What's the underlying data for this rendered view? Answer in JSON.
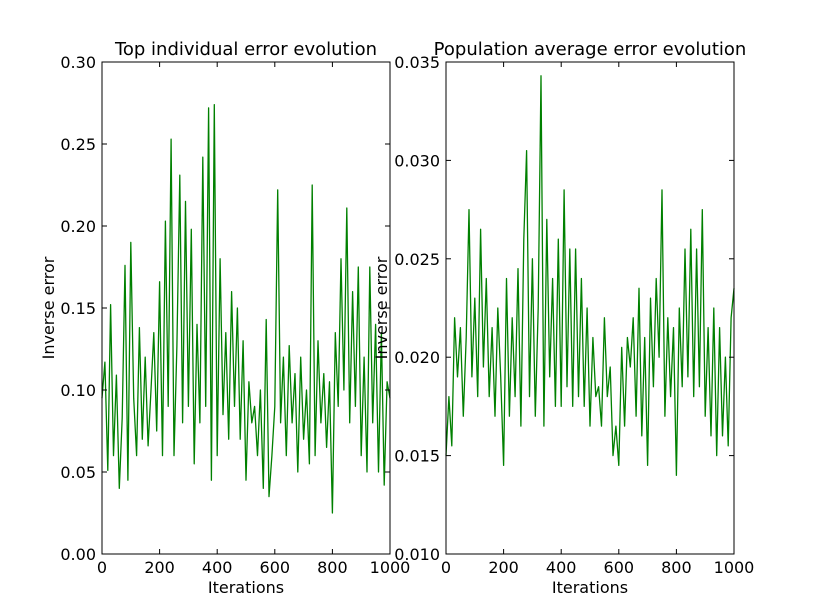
{
  "chart_data": [
    {
      "type": "line",
      "title": "Top individual error evolution",
      "xlabel": "Iterations",
      "ylabel": "Inverse error",
      "xlim": [
        0,
        1000
      ],
      "ylim": [
        0.0,
        0.3
      ],
      "xticks": [
        0,
        200,
        400,
        600,
        800,
        1000
      ],
      "xtick_labels": [
        "0",
        "200",
        "400",
        "600",
        "800",
        "1000"
      ],
      "yticks": [
        0.0,
        0.05,
        0.1,
        0.15,
        0.2,
        0.25,
        0.3
      ],
      "ytick_labels": [
        "0.00",
        "0.05",
        "0.10",
        "0.15",
        "0.20",
        "0.25",
        "0.30"
      ],
      "grid": false,
      "series": [
        {
          "color": "#008000",
          "x": [
            0,
            10,
            20,
            30,
            40,
            50,
            60,
            70,
            80,
            90,
            100,
            110,
            120,
            130,
            140,
            150,
            160,
            170,
            180,
            190,
            200,
            210,
            220,
            230,
            240,
            250,
            260,
            270,
            280,
            290,
            300,
            310,
            320,
            330,
            340,
            350,
            360,
            370,
            380,
            390,
            400,
            410,
            420,
            430,
            440,
            450,
            460,
            470,
            480,
            490,
            500,
            510,
            520,
            530,
            540,
            550,
            560,
            570,
            580,
            590,
            600,
            610,
            620,
            630,
            640,
            650,
            660,
            670,
            680,
            690,
            700,
            710,
            720,
            730,
            740,
            750,
            760,
            770,
            780,
            790,
            800,
            810,
            820,
            830,
            840,
            850,
            860,
            870,
            880,
            890,
            900,
            910,
            920,
            930,
            940,
            950,
            960,
            970,
            980,
            990,
            1000
          ],
          "y": [
            0.095,
            0.117,
            0.051,
            0.152,
            0.06,
            0.109,
            0.04,
            0.083,
            0.176,
            0.045,
            0.19,
            0.095,
            0.06,
            0.138,
            0.07,
            0.12,
            0.066,
            0.1,
            0.135,
            0.075,
            0.166,
            0.06,
            0.203,
            0.09,
            0.253,
            0.06,
            0.127,
            0.231,
            0.08,
            0.215,
            0.09,
            0.198,
            0.055,
            0.14,
            0.08,
            0.242,
            0.09,
            0.272,
            0.045,
            0.274,
            0.06,
            0.18,
            0.085,
            0.135,
            0.07,
            0.16,
            0.09,
            0.15,
            0.07,
            0.13,
            0.045,
            0.105,
            0.08,
            0.09,
            0.06,
            0.1,
            0.04,
            0.143,
            0.035,
            0.06,
            0.09,
            0.222,
            0.08,
            0.12,
            0.06,
            0.127,
            0.08,
            0.11,
            0.05,
            0.12,
            0.07,
            0.1,
            0.055,
            0.225,
            0.06,
            0.13,
            0.08,
            0.11,
            0.065,
            0.105,
            0.025,
            0.135,
            0.09,
            0.18,
            0.1,
            0.211,
            0.08,
            0.16,
            0.09,
            0.175,
            0.06,
            0.12,
            0.05,
            0.175,
            0.08,
            0.14,
            0.05,
            0.135,
            0.042,
            0.105,
            0.095
          ]
        }
      ]
    },
    {
      "type": "line",
      "title": "Population average error evolution",
      "xlabel": "Iterations",
      "ylabel": "Inverse error",
      "xlim": [
        0,
        1000
      ],
      "ylim": [
        0.01,
        0.035
      ],
      "xticks": [
        0,
        200,
        400,
        600,
        800,
        1000
      ],
      "xtick_labels": [
        "0",
        "200",
        "400",
        "600",
        "800",
        "1000"
      ],
      "yticks": [
        0.01,
        0.015,
        0.02,
        0.025,
        0.03,
        0.035
      ],
      "ytick_labels": [
        "0.010",
        "0.015",
        "0.020",
        "0.025",
        "0.030",
        "0.035"
      ],
      "grid": false,
      "series": [
        {
          "color": "#008000",
          "x": [
            0,
            10,
            20,
            30,
            40,
            50,
            60,
            70,
            80,
            90,
            100,
            110,
            120,
            130,
            140,
            150,
            160,
            170,
            180,
            190,
            200,
            210,
            220,
            230,
            240,
            250,
            260,
            270,
            280,
            290,
            300,
            310,
            320,
            330,
            340,
            350,
            360,
            370,
            380,
            390,
            400,
            410,
            420,
            430,
            440,
            450,
            460,
            470,
            480,
            490,
            500,
            510,
            520,
            530,
            540,
            550,
            560,
            570,
            580,
            590,
            600,
            610,
            620,
            630,
            640,
            650,
            660,
            670,
            680,
            690,
            700,
            710,
            720,
            730,
            740,
            750,
            760,
            770,
            780,
            790,
            800,
            810,
            820,
            830,
            840,
            850,
            860,
            870,
            880,
            890,
            900,
            910,
            920,
            930,
            940,
            950,
            960,
            970,
            980,
            990,
            1000
          ],
          "y": [
            0.015,
            0.018,
            0.0155,
            0.022,
            0.019,
            0.0215,
            0.017,
            0.021,
            0.0275,
            0.019,
            0.023,
            0.018,
            0.0265,
            0.0195,
            0.024,
            0.018,
            0.0215,
            0.017,
            0.0225,
            0.019,
            0.0145,
            0.024,
            0.017,
            0.022,
            0.018,
            0.0245,
            0.0165,
            0.026,
            0.0305,
            0.018,
            0.025,
            0.017,
            0.0225,
            0.0343,
            0.0165,
            0.027,
            0.019,
            0.024,
            0.0175,
            0.026,
            0.0175,
            0.0285,
            0.0185,
            0.0255,
            0.0175,
            0.0255,
            0.018,
            0.024,
            0.0175,
            0.0225,
            0.0165,
            0.021,
            0.018,
            0.0185,
            0.0165,
            0.022,
            0.018,
            0.0195,
            0.015,
            0.0165,
            0.0145,
            0.0205,
            0.0165,
            0.021,
            0.0195,
            0.022,
            0.017,
            0.0235,
            0.016,
            0.021,
            0.0145,
            0.023,
            0.0185,
            0.024,
            0.02,
            0.0285,
            0.017,
            0.022,
            0.018,
            0.0215,
            0.014,
            0.0225,
            0.0185,
            0.0255,
            0.019,
            0.0265,
            0.018,
            0.0255,
            0.0185,
            0.0275,
            0.017,
            0.0215,
            0.016,
            0.0225,
            0.015,
            0.0215,
            0.016,
            0.02,
            0.0155,
            0.022,
            0.0235
          ]
        }
      ]
    }
  ]
}
